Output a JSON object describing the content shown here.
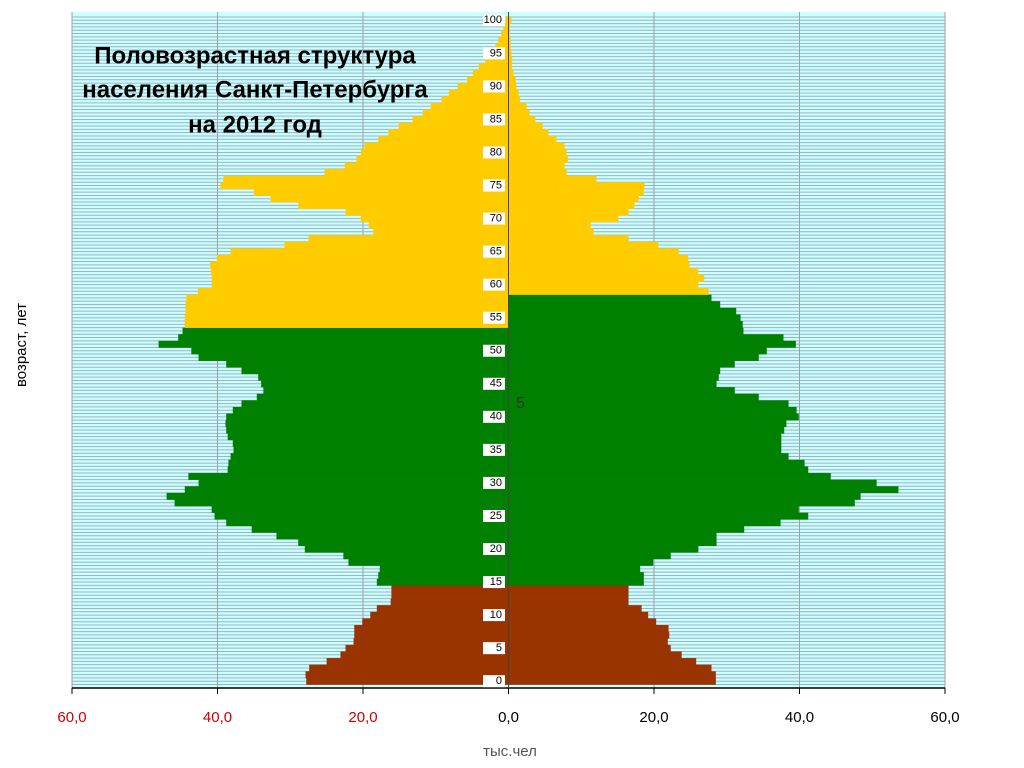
{
  "chart_data": {
    "type": "pyramid",
    "title": [
      "Половозрастная структура",
      "населения Санкт-Петербурга",
      "на 2012 год"
    ],
    "ylabel": "возраст, лет",
    "xlabel": "тыс.чел",
    "annotation": "5",
    "categories": [
      "0",
      null,
      null,
      null,
      null,
      "5",
      null,
      null,
      null,
      null,
      "10",
      null,
      null,
      null,
      null,
      "15",
      null,
      null,
      null,
      null,
      "20",
      null,
      null,
      null,
      null,
      "25",
      null,
      null,
      null,
      null,
      "30",
      null,
      null,
      null,
      null,
      "35",
      null,
      null,
      null,
      null,
      "40",
      null,
      null,
      null,
      null,
      "45",
      null,
      null,
      null,
      null,
      "50",
      null,
      null,
      null,
      null,
      "55",
      null,
      null,
      null,
      null,
      "60",
      null,
      null,
      null,
      null,
      "65",
      null,
      null,
      null,
      null,
      "70",
      null,
      null,
      null,
      null,
      "75",
      null,
      null,
      null,
      null,
      "80",
      null,
      null,
      null,
      null,
      "85",
      null,
      null,
      null,
      null,
      "90",
      null,
      null,
      null,
      null,
      "95",
      null,
      null,
      null,
      null,
      "100"
    ],
    "series": [
      {
        "bands": [
          {
            "to": 14,
            "color": "#993300"
          },
          {
            "to": 53,
            "color": "#008000"
          },
          {
            "to": 100,
            "color": "#ffcc00"
          }
        ],
        "values": [
          -27.8,
          -27.9,
          -27.4,
          -25,
          -23.1,
          -22.4,
          -21.3,
          -21.2,
          -21.2,
          -20.1,
          -19,
          -18.1,
          -16.2,
          -16.1,
          -16.1,
          -18.1,
          -17.9,
          -17.7,
          -22,
          -22.7,
          -28,
          -28.9,
          -31.9,
          -35.3,
          -38.8,
          -40.4,
          -40.8,
          -45.9,
          -47,
          -44.5,
          -42.6,
          -44,
          -38.6,
          -38.5,
          -38.2,
          -37.8,
          -37.9,
          -38.6,
          -38.8,
          -38.9,
          -38.8,
          -37.9,
          -36.7,
          -34.6,
          -33.7,
          -34,
          -34.4,
          -36.7,
          -38.8,
          -42.6,
          -43.6,
          -48.1,
          -45.4,
          -44.8,
          -44.5,
          -44.5,
          -44.4,
          -44.4,
          -44.3,
          -42.7,
          -40.8,
          -40.8,
          -40.9,
          -41,
          -40.1,
          -38.2,
          -30.8,
          -27.5,
          -18.6,
          -19.2,
          -20.3,
          -22.4,
          -28.9,
          -32.7,
          -35,
          -39.6,
          -39.2,
          -25.3,
          -22.5,
          -20.9,
          -20.3,
          -19.8,
          -17.9,
          -16.5,
          -15.1,
          -13.2,
          -11.8,
          -10.7,
          -9.2,
          -8.2,
          -7,
          -5.7,
          -4.9,
          -4.1,
          -3.2,
          -2.5,
          -1.8,
          -1.4,
          -1,
          -0.7,
          -0.4
        ]
      },
      {
        "bands": [
          {
            "to": 14,
            "color": "#993300"
          },
          {
            "to": 58,
            "color": "#008000"
          },
          {
            "to": 100,
            "color": "#ffcc00"
          }
        ],
        "values": [
          28.5,
          28.5,
          27.9,
          25.8,
          23.8,
          22.3,
          21.9,
          22.1,
          22,
          20.3,
          19.2,
          18.3,
          16.5,
          16.5,
          16.5,
          18.6,
          18.6,
          18.1,
          19.9,
          22.3,
          26.1,
          28.6,
          28.6,
          32.4,
          37.4,
          41.2,
          39.9,
          47.6,
          48.4,
          53.6,
          50.6,
          44.3,
          41.2,
          40.7,
          38.5,
          37.5,
          37.5,
          37.5,
          37.9,
          38.2,
          39.9,
          39.6,
          38.5,
          34.4,
          31.1,
          28.6,
          28.9,
          29.1,
          31.1,
          34.4,
          35.5,
          39.5,
          37.8,
          32.3,
          32.2,
          31.9,
          31.3,
          29.1,
          27.9,
          27.5,
          26.1,
          26.9,
          26.1,
          24.9,
          24.7,
          23.4,
          20.6,
          16.5,
          11.7,
          11.3,
          15.1,
          16.5,
          17.3,
          17.9,
          18.6,
          18.7,
          12.1,
          8,
          7.7,
          8.2,
          8,
          7.7,
          6.6,
          5.5,
          4.7,
          3.7,
          2.9,
          2.5,
          1.6,
          1.4,
          1.1,
          1,
          0.7,
          0.5,
          0.5,
          0.4,
          0.3,
          0.3,
          0.2,
          0.2,
          0.4
        ]
      }
    ],
    "xlim": [
      -60,
      60
    ],
    "xticks": [
      {
        "value": -60,
        "label": "60,0"
      },
      {
        "value": -40,
        "label": "40,0"
      },
      {
        "value": -20,
        "label": "20,0"
      },
      {
        "value": 0,
        "label": "0,0"
      },
      {
        "value": 20,
        "label": "20,0"
      },
      {
        "value": 40,
        "label": "40,0"
      },
      {
        "value": 60,
        "label": "60,0"
      }
    ],
    "negative_tick_color": "#cc0000",
    "grid": true
  }
}
